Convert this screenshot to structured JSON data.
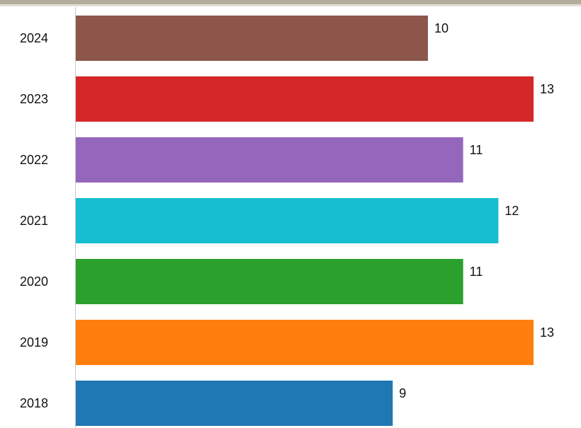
{
  "chart_data": {
    "type": "bar",
    "orientation": "horizontal",
    "categories": [
      "2024",
      "2023",
      "2022",
      "2021",
      "2020",
      "2019",
      "2018"
    ],
    "values": [
      10,
      13,
      11,
      12,
      11,
      13,
      9
    ],
    "colors": [
      "#8c564b",
      "#d62728",
      "#9467bd",
      "#17becf",
      "#2ca02c",
      "#ff7f0e",
      "#1f77b4"
    ],
    "title": "",
    "xlabel": "",
    "ylabel": "",
    "xlim": [
      0,
      13.2
    ],
    "grid": false,
    "legend": "none",
    "data_labels": true
  },
  "style": {
    "top_band_color": "#b3ad9c",
    "axis_color": "#c8c8c8",
    "text_color": "#111111"
  }
}
